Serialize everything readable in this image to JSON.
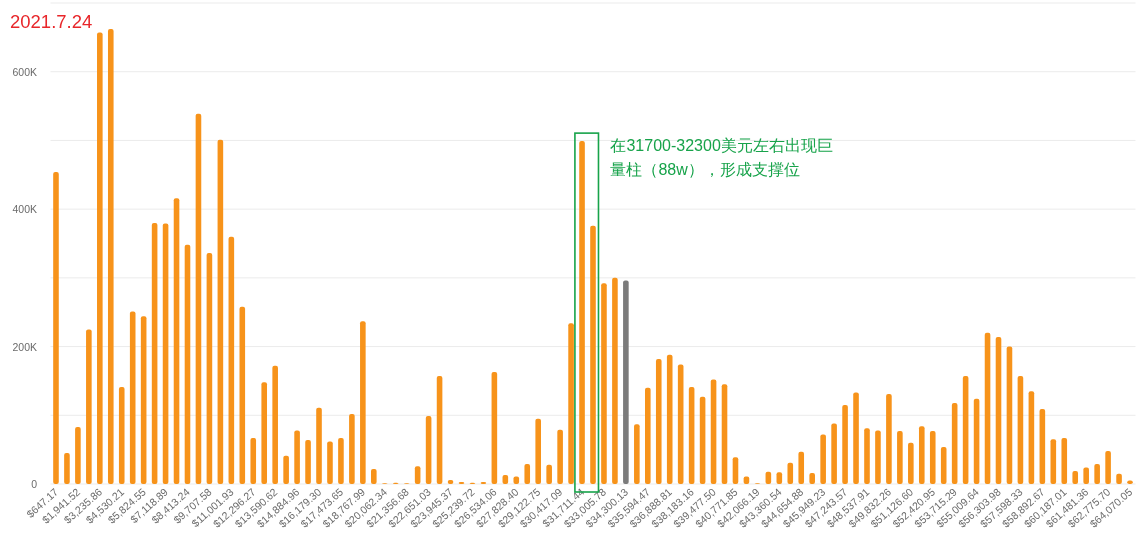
{
  "chart_data": {
    "type": "bar",
    "title": "2021.7.24",
    "categories": [
      "$647.17",
      null,
      "$1,941.52",
      null,
      "$3,235.86",
      null,
      "$4,530.21",
      null,
      "$5,824.55",
      null,
      "$7,118.89",
      null,
      "$8,413.24",
      null,
      "$9,707.58",
      null,
      "$11,001.93",
      null,
      "$12,296.27",
      null,
      "$13,590.62",
      null,
      "$14,884.96",
      null,
      "$16,179.30",
      null,
      "$17,473.65",
      null,
      "$18,767.99",
      null,
      "$20,062.34",
      null,
      "$21,356.68",
      null,
      "$22,651.03",
      null,
      "$23,945.37",
      null,
      "$25,239.72",
      null,
      "$26,534.06",
      null,
      "$27,828.40",
      null,
      "$29,122.75",
      null,
      "$30,417.09",
      null,
      "$31,711.44",
      null,
      "$33,005.78",
      null,
      "$34,300.13",
      null,
      "$35,594.47",
      null,
      "$36,888.81",
      null,
      "$38,183.16",
      null,
      "$39,477.50",
      null,
      "$40,771.85",
      null,
      "$42,066.19",
      null,
      "$43,360.54",
      null,
      "$44,654.88",
      null,
      "$45,949.23",
      null,
      "$47,243.57",
      null,
      "$48,537.91",
      null,
      "$49,832.26",
      null,
      "$51,126.60",
      null,
      "$52,420.95",
      null,
      "$53,715.29",
      null,
      "$55,009.64",
      null,
      "$56,303.98",
      null,
      "$57,598.33",
      null,
      "$58,892.67",
      null,
      "$60,187.01",
      null,
      "$61,481.36",
      null,
      "$62,775.70",
      null,
      "$64,070.05"
    ],
    "values": [
      454000,
      45000,
      83000,
      225000,
      657000,
      662000,
      141000,
      251000,
      244000,
      380000,
      379000,
      416000,
      348000,
      539000,
      336000,
      501000,
      360000,
      258000,
      67000,
      148000,
      172000,
      41000,
      78000,
      64000,
      111000,
      62000,
      67000,
      102000,
      237000,
      22000,
      1000,
      2000,
      1000,
      26000,
      99000,
      157000,
      6000,
      3000,
      2000,
      3000,
      163000,
      13000,
      11000,
      29000,
      95000,
      28000,
      79000,
      234000,
      499000,
      376000,
      292000,
      300000,
      296000,
      87000,
      140000,
      182000,
      188000,
      174000,
      141000,
      127000,
      152000,
      145000,
      39000,
      11000,
      1000,
      18000,
      17000,
      31000,
      47000,
      16000,
      72000,
      88000,
      115000,
      133000,
      81000,
      78000,
      131000,
      77000,
      60000,
      84000,
      77000,
      54000,
      118000,
      157000,
      124000,
      220000,
      214000,
      200000,
      157000,
      135000,
      109000,
      65000,
      67000,
      19000,
      24000,
      29000,
      48000,
      15000,
      5000
    ],
    "colors": [
      "#f7931a",
      "#f7931a",
      "#f7931a",
      "#f7931a",
      "#f7931a",
      "#f7931a",
      "#f7931a",
      "#f7931a",
      "#f7931a",
      "#f7931a",
      "#f7931a",
      "#f7931a",
      "#f7931a",
      "#f7931a",
      "#f7931a",
      "#f7931a",
      "#f7931a",
      "#f7931a",
      "#f7931a",
      "#f7931a",
      "#f7931a",
      "#f7931a",
      "#f7931a",
      "#f7931a",
      "#f7931a",
      "#f7931a",
      "#f7931a",
      "#f7931a",
      "#f7931a",
      "#f7931a",
      "#f7931a",
      "#f7931a",
      "#f7931a",
      "#f7931a",
      "#f7931a",
      "#f7931a",
      "#f7931a",
      "#f7931a",
      "#f7931a",
      "#f7931a",
      "#f7931a",
      "#f7931a",
      "#f7931a",
      "#f7931a",
      "#f7931a",
      "#f7931a",
      "#f7931a",
      "#f7931a",
      "#f7931a",
      "#f7931a",
      "#f7931a",
      "#f7931a",
      "#7b7b7b",
      "#f7931a",
      "#f7931a",
      "#f7931a",
      "#f7931a",
      "#f7931a",
      "#f7931a",
      "#f7931a",
      "#f7931a",
      "#f7931a",
      "#f7931a",
      "#f7931a",
      "#f7931a",
      "#f7931a",
      "#f7931a",
      "#f7931a",
      "#f7931a",
      "#f7931a",
      "#f7931a",
      "#f7931a",
      "#f7931a",
      "#f7931a",
      "#f7931a",
      "#f7931a",
      "#f7931a",
      "#f7931a",
      "#f7931a",
      "#f7931a",
      "#f7931a",
      "#f7931a",
      "#f7931a",
      "#f7931a",
      "#f7931a",
      "#f7931a",
      "#f7931a",
      "#f7931a",
      "#f7931a",
      "#f7931a",
      "#f7931a",
      "#f7931a",
      "#f7931a",
      "#f7931a",
      "#f7931a",
      "#f7931a",
      "#f7931a",
      "#f7931a",
      "#f7931a"
    ],
    "ylim": [
      0,
      700000
    ],
    "yticks": [
      0,
      {
        "value": 100000,
        "label": null
      },
      {
        "value": 200000,
        "label": "200K"
      },
      {
        "value": 300000,
        "label": null
      },
      {
        "value": 400000,
        "label": "400K"
      },
      {
        "value": 500000,
        "label": null
      },
      {
        "value": 600000,
        "label": "600K"
      },
      {
        "value": 700000,
        "label": null
      }
    ],
    "grid": "y",
    "annotations": [
      {
        "text": "在31700-32300美元左右出现巨量柱（88w），形成支撑位",
        "x": "$31,711.44",
        "y": 499000
      }
    ]
  }
}
